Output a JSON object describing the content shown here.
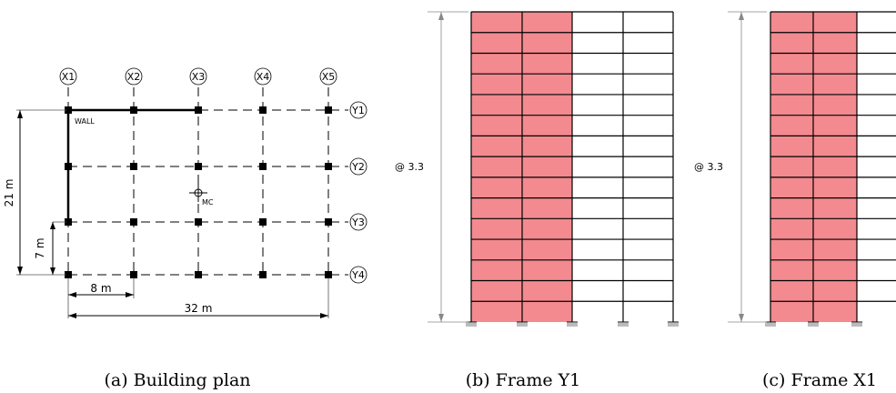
{
  "plan": {
    "x_labels": [
      "X1",
      "X2",
      "X3",
      "X4",
      "X5"
    ],
    "y_labels": [
      "Y1",
      "Y2",
      "Y3",
      "Y4"
    ],
    "wall_label": "WALL",
    "mass_center_label": "MC",
    "dim_total_height": "21 m",
    "dim_bay_height": "7 m",
    "dim_bay_width": "8 m",
    "dim_total_width": "32 m",
    "caption": "(a) Building plan"
  },
  "frame_y1": {
    "storey_height_label": "@ 3.3",
    "stories": 15,
    "bays": 4,
    "shaded_bays": 2,
    "caption": "(b) Frame Y1"
  },
  "frame_x1": {
    "storey_height_label": "@ 3.3",
    "stories": 15,
    "caption": "(c) Frame X1"
  },
  "colors": {
    "wall_fill": "#f28a8f",
    "line": "#000000",
    "dim_line": "#555555"
  }
}
